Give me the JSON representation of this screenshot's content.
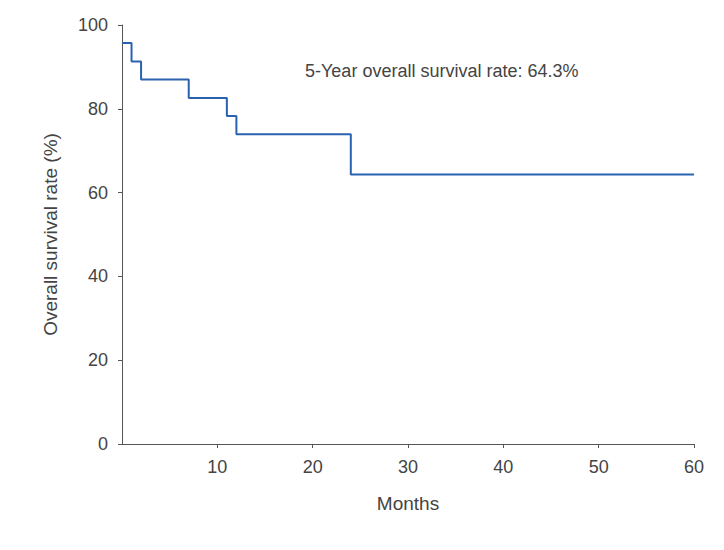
{
  "chart_data": {
    "type": "line",
    "line_style": "step",
    "annotation": "5-Year overall survival rate: 64.3%",
    "x_label": "Months",
    "y_label": "Overall survival rate (%)",
    "x": [
      0,
      1,
      2,
      7,
      11,
      12,
      24,
      60
    ],
    "values": [
      95.7,
      91.3,
      87.0,
      82.6,
      78.3,
      73.9,
      64.3,
      64.3
    ],
    "color": "#2a62b0",
    "xlim": [
      0,
      60
    ],
    "xticks": [
      10,
      20,
      30,
      40,
      50,
      60
    ],
    "ylim": [
      0,
      100
    ],
    "yticks": [
      0,
      20,
      40,
      60,
      80,
      100
    ],
    "grid": false
  }
}
